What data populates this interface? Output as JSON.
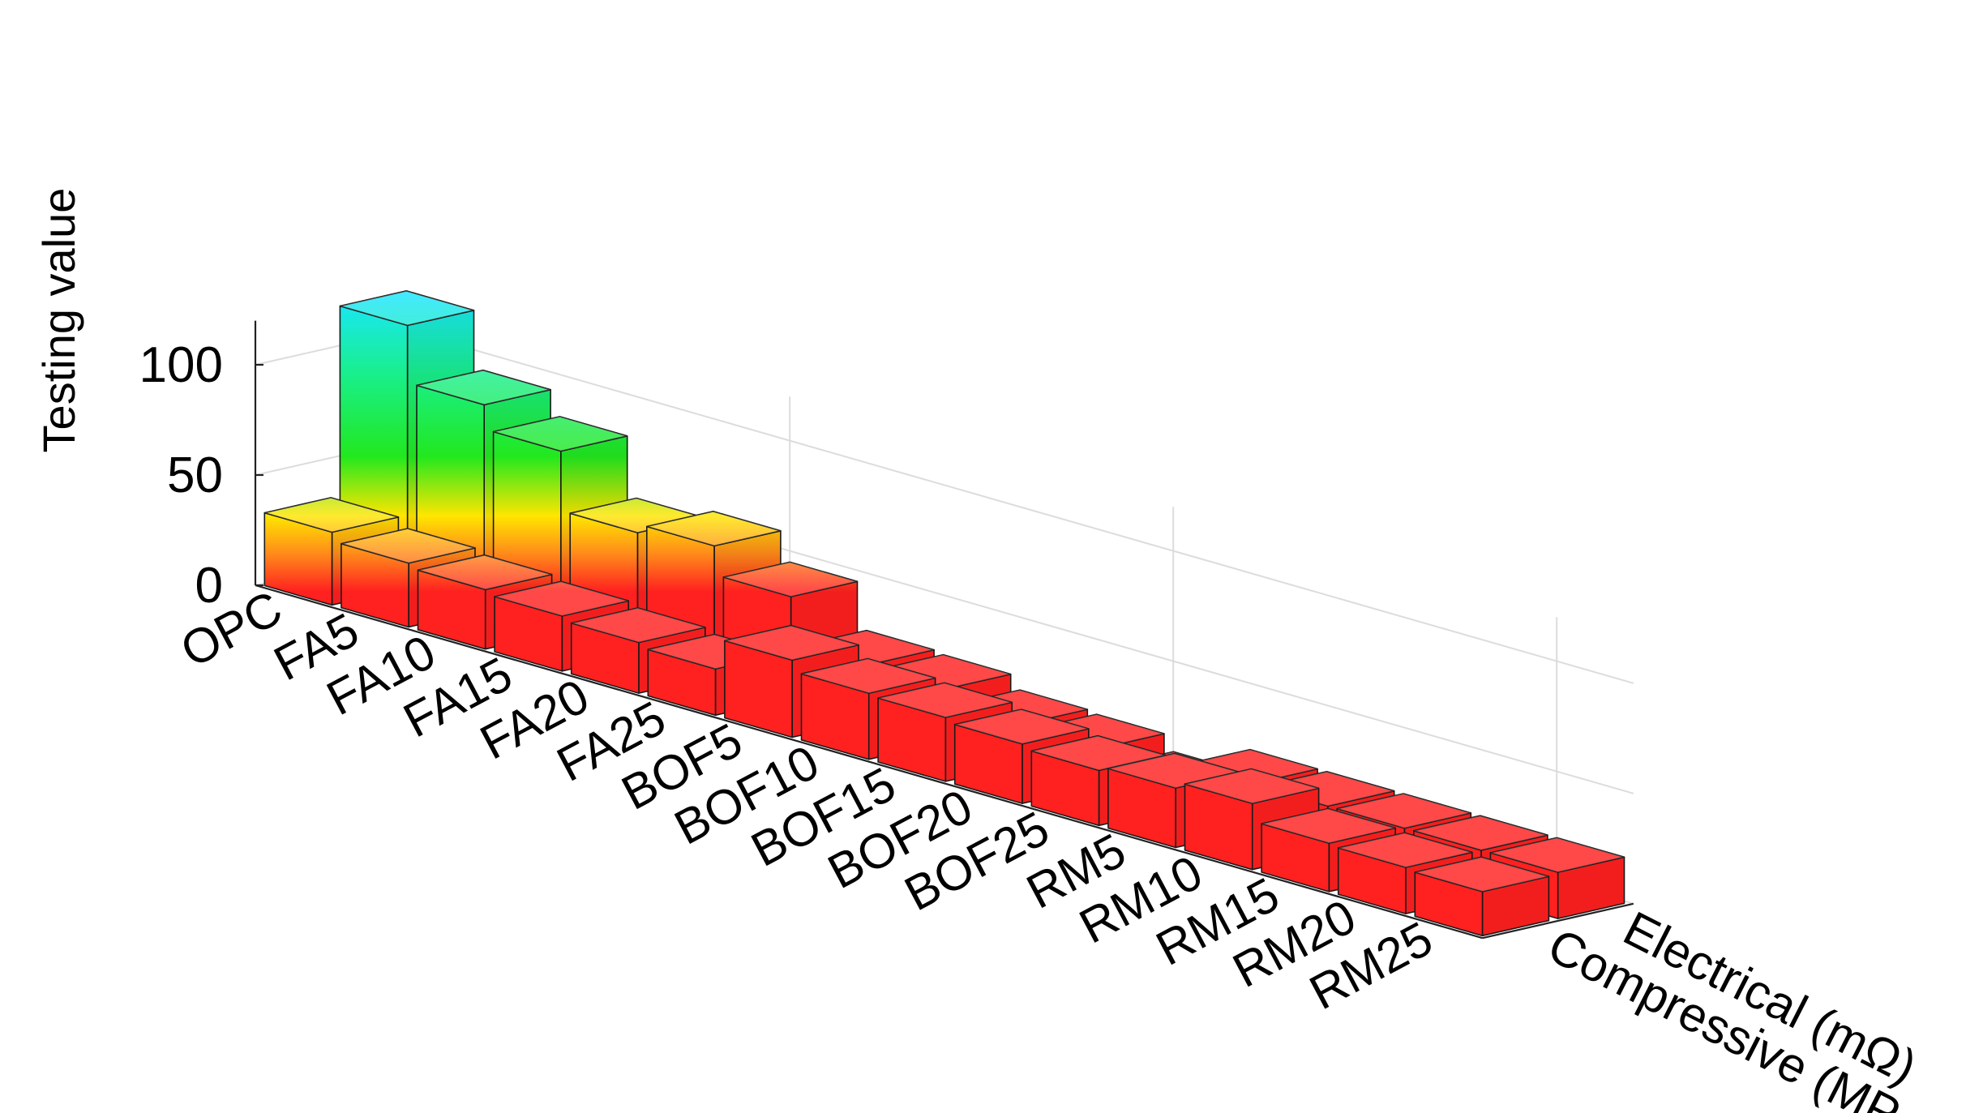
{
  "chart_data": {
    "type": "bar",
    "bar_style": "3d-grouped",
    "title": "",
    "zlabel": "Testing value",
    "zlim": [
      0,
      120
    ],
    "zticks": [
      0,
      50,
      100
    ],
    "categories": [
      "OPC",
      "FA5",
      "FA10",
      "FA15",
      "FA20",
      "FA25",
      "BOF5",
      "BOF10",
      "BOF15",
      "BOF20",
      "BOF25",
      "RM5",
      "RM10",
      "RM15",
      "RM20",
      "RM25"
    ],
    "series": [
      {
        "name": "Compressive (MPa)",
        "values": [
          33,
          29,
          27,
          25,
          23,
          21,
          35,
          30,
          29,
          27,
          25,
          27,
          30,
          22,
          21,
          20
        ]
      },
      {
        "name": "Electrical (mΩ)",
        "values": [
          119,
          93,
          82,
          55,
          59,
          46,
          25,
          24,
          18,
          17,
          10,
          21,
          21,
          21,
          21,
          21
        ]
      }
    ],
    "grid": true,
    "colormap": "rainbow by height (red low, green mid, blue/magenta high)"
  }
}
